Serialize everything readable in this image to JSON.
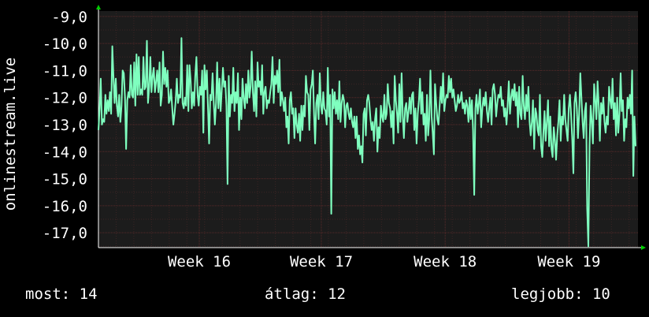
{
  "chart_data": {
    "type": "line",
    "title": "",
    "xlabel": "",
    "ylabel": "onlinestream.live",
    "ylim": [
      -17.55,
      -8.8
    ],
    "yticks": [
      -9,
      -10,
      -11,
      -12,
      -13,
      -14,
      -15,
      -16,
      -17
    ],
    "ytick_labels": [
      "-9,0",
      "-10,0",
      "-11,0",
      "-12,0",
      "-13,0",
      "-14,0",
      "-15,0",
      "-16,0",
      "-17,0"
    ],
    "x_ticks": [
      {
        "label": "Week 16",
        "pos": 57
      },
      {
        "label": "Week 17",
        "pos": 126
      },
      {
        "label": "Week 18",
        "pos": 196
      },
      {
        "label": "Week 19",
        "pos": 266
      }
    ],
    "xlim": [
      0,
      305
    ],
    "grid": true,
    "colors": {
      "background": "#000000",
      "plot_background": "#1c1c1c",
      "grid": "#5a2a2a",
      "line": "#7fffbf",
      "axis": "#ffffff",
      "arrow": "#00cc00"
    },
    "series": [
      {
        "name": "",
        "values": [
          -13.2,
          -12.4,
          -11.3,
          -13.0,
          -12.8,
          -12.9,
          -11.9,
          -12.6,
          -12.1,
          -12.5,
          -11.8,
          -12.6,
          -10.1,
          -11.2,
          -12.2,
          -11.3,
          -12.3,
          -12.7,
          -11.9,
          -12.9,
          -12.3,
          -11.0,
          -11.1,
          -12.0,
          -13.9,
          -12.1,
          -11.8,
          -12.0,
          -10.8,
          -11.9,
          -12.0,
          -10.7,
          -12.3,
          -10.4,
          -11.9,
          -10.5,
          -11.9,
          -11.7,
          -11.9,
          -10.5,
          -11.7,
          -11.6,
          -9.9,
          -12.2,
          -11.6,
          -10.5,
          -11.8,
          -11.2,
          -10.9,
          -11.8,
          -11.4,
          -11.0,
          -11.8,
          -10.7,
          -12.3,
          -11.9,
          -10.3,
          -11.5,
          -10.9,
          -11.6,
          -11.0,
          -12.2,
          -12.1,
          -11.7,
          -12.4,
          -13.0,
          -12.6,
          -12.1,
          -11.3,
          -12.2,
          -11.9,
          -12.0,
          -9.8,
          -12.2,
          -12.4,
          -12.0,
          -12.3,
          -10.8,
          -12.5,
          -10.8,
          -11.4,
          -12.4,
          -11.8,
          -12.3,
          -11.2,
          -10.5,
          -11.9,
          -12.3,
          -11.6,
          -11.9,
          -11.0,
          -13.3,
          -10.8,
          -11.7,
          -11.0,
          -12.3,
          -13.7,
          -11.9,
          -12.1,
          -11.1,
          -12.2,
          -13.0,
          -12.2,
          -10.7,
          -12.4,
          -11.3,
          -12.5,
          -11.7,
          -10.9,
          -11.6,
          -11.4,
          -12.3,
          -15.2,
          -11.2,
          -12.7,
          -11.9,
          -12.2,
          -10.9,
          -12.5,
          -11.8,
          -12.2,
          -11.1,
          -13.2,
          -12.0,
          -12.8,
          -11.3,
          -12.0,
          -12.4,
          -11.5,
          -12.2,
          -11.0,
          -12.0,
          -11.6,
          -10.3,
          -11.8,
          -12.5,
          -11.4,
          -12.7,
          -10.7,
          -11.6,
          -11.4,
          -11.9,
          -10.8,
          -12.6,
          -11.8,
          -11.6,
          -12.4,
          -12.1,
          -12.2,
          -11.8,
          -11.5,
          -10.5,
          -12.2,
          -11.2,
          -11.5,
          -11.0,
          -11.8,
          -10.6,
          -12.3,
          -11.8,
          -12.1,
          -12.5,
          -12.0,
          -13.1,
          -12.7,
          -13.7,
          -12.1,
          -11.8,
          -12.6,
          -12.4,
          -13.5,
          -12.4,
          -13.0,
          -13.3,
          -12.6,
          -13.6,
          -12.3,
          -13.2,
          -12.3,
          -12.7,
          -11.2,
          -11.8,
          -11.9,
          -13.2,
          -11.7,
          -11.5,
          -11.0,
          -12.6,
          -13.7,
          -12.2,
          -11.9,
          -12.8,
          -11.1,
          -12.3,
          -12.6,
          -11.8,
          -12.4,
          -12.5,
          -13.0,
          -10.9,
          -12.7,
          -11.9,
          -16.3,
          -11.7,
          -12.4,
          -11.8,
          -12.6,
          -12.1,
          -12.8,
          -11.4,
          -12.9,
          -12.2,
          -11.9,
          -12.1,
          -13.1,
          -12.3,
          -12.2,
          -12.6,
          -12.8,
          -12.4,
          -12.9,
          -13.1,
          -12.7,
          -13.5,
          -12.7,
          -13.9,
          -13.4,
          -14.1,
          -13.8,
          -14.4,
          -12.6,
          -12.4,
          -13.4,
          -12.1,
          -11.9,
          -12.2,
          -12.8,
          -13.2,
          -12.9,
          -13.6,
          -12.8,
          -12.4,
          -14.0,
          -13.1,
          -13.5,
          -12.3,
          -12.7,
          -12.9,
          -11.9,
          -12.8,
          -12.6,
          -11.5,
          -12.2,
          -12.4,
          -13.1,
          -12.5,
          -13.7,
          -11.2,
          -12.1,
          -12.6,
          -13.3,
          -11.5,
          -12.9,
          -11.1,
          -12.7,
          -13.5,
          -12.4,
          -12.2,
          -12.9,
          -12.5,
          -12.0,
          -12.6,
          -11.9,
          -11.8,
          -13.2,
          -12.4,
          -13.7,
          -12.6,
          -12.1,
          -11.3,
          -12.6,
          -11.8,
          -13.0,
          -12.6,
          -13.6,
          -11.9,
          -13.4,
          -12.8,
          -11.0,
          -12.7,
          -13.3,
          -14.1,
          -11.5,
          -12.2,
          -12.8,
          -13.0,
          -12.3,
          -11.6,
          -12.2,
          -11.1,
          -12.5,
          -12.1,
          -11.9,
          -12.0,
          -11.2,
          -11.8,
          -11.3,
          -12.0,
          -11.7,
          -12.1,
          -12.5,
          -12.3,
          -11.9,
          -12.2,
          -12.1,
          -11.8,
          -12.4,
          -12.2,
          -12.6,
          -12.1,
          -12.3,
          -12.9,
          -12.0,
          -12.8,
          -12.1,
          -13.2,
          -15.6,
          -12.4,
          -11.9,
          -12.6,
          -12.2,
          -11.7,
          -13.1,
          -12.4,
          -12.0,
          -12.3,
          -11.8,
          -12.5,
          -12.9,
          -12.4,
          -12.0,
          -13.0,
          -11.7,
          -11.5,
          -11.9,
          -12.7,
          -12.2,
          -11.9,
          -12.0,
          -11.6,
          -12.3,
          -12.1,
          -12.7,
          -12.4,
          -13.0,
          -12.3,
          -11.4,
          -12.6,
          -12.0,
          -11.7,
          -12.1,
          -11.5,
          -12.3,
          -11.8,
          -13.1,
          -11.6,
          -12.6,
          -12.8,
          -11.2,
          -12.3,
          -12.8,
          -11.9,
          -12.5,
          -11.6,
          -12.9,
          -13.4,
          -12.9,
          -12.1,
          -13.9,
          -12.4,
          -12.6,
          -13.2,
          -13.4,
          -11.9,
          -13.8,
          -14.2,
          -13.3,
          -12.5,
          -13.6,
          -12.9,
          -12.1,
          -13.8,
          -12.7,
          -13.9,
          -14.2,
          -13.1,
          -13.6,
          -14.3,
          -13.4,
          -12.9,
          -12.1,
          -13.6,
          -12.7,
          -13.0,
          -11.9,
          -12.8,
          -13.2,
          -13.6,
          -12.4,
          -11.9,
          -12.6,
          -13.5,
          -14.8,
          -12.2,
          -11.8,
          -12.4,
          -13.5,
          -12.6,
          -11.1,
          -12.0,
          -12.9,
          -13.5,
          -12.5,
          -12.2,
          -16.1,
          -17.5,
          -13.8,
          -12.3,
          -12.9,
          -13.7,
          -11.5,
          -12.1,
          -12.8,
          -11.4,
          -12.3,
          -13.6,
          -12.2,
          -12.6,
          -12.0,
          -12.9,
          -13.3,
          -12.7,
          -13.0,
          -11.6,
          -12.1,
          -12.4,
          -11.3,
          -12.8,
          -12.2,
          -13.4,
          -12.0,
          -13.3,
          -12.6,
          -11.1,
          -12.5,
          -12.1,
          -13.6,
          -12.8,
          -13.1,
          -12.0,
          -12.4,
          -11.9,
          -12.6,
          -11.0,
          -14.9,
          -12.7,
          -13.8
        ]
      }
    ]
  },
  "footer": {
    "most": "most: 14",
    "avg": "átlag: 12",
    "best": "legjobb: 10"
  }
}
